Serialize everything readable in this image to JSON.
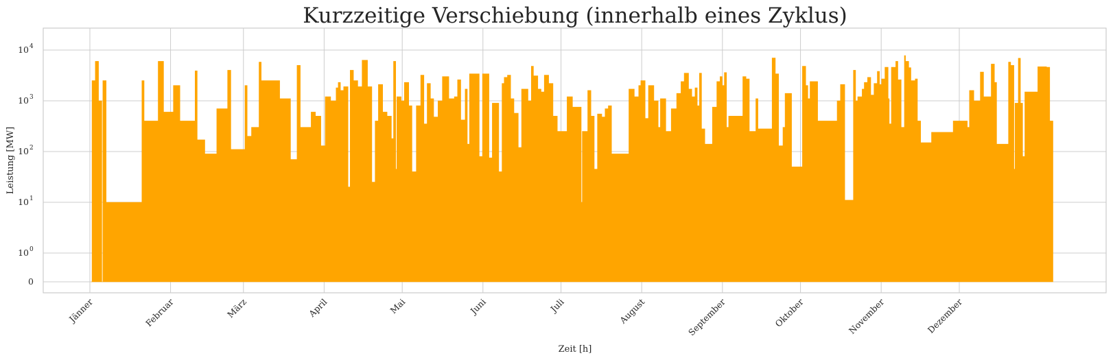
{
  "chart_data": {
    "type": "area",
    "title": "Kurzzeitige Verschiebung (innerhalb eines Zyklus)",
    "xlabel": "Zeit [h]",
    "ylabel": "Leistung [MW]",
    "yscale": "symlog",
    "ytick_labels": [
      {
        "value": 0,
        "label": "0",
        "exp": ""
      },
      {
        "value": 1,
        "label": "10",
        "exp": "0"
      },
      {
        "value": 10,
        "label": "10",
        "exp": "1"
      },
      {
        "value": 100,
        "label": "10",
        "exp": "2"
      },
      {
        "value": 1000,
        "label": "10",
        "exp": "3"
      },
      {
        "value": 10000,
        "label": "10",
        "exp": "4"
      }
    ],
    "xtick_labels": [
      {
        "hour": 0,
        "label": "Jänner"
      },
      {
        "hour": 744,
        "label": "Februar"
      },
      {
        "hour": 1416,
        "label": "März"
      },
      {
        "hour": 2160,
        "label": "April"
      },
      {
        "hour": 2880,
        "label": "Mai"
      },
      {
        "hour": 3624,
        "label": "Juni"
      },
      {
        "hour": 4344,
        "label": "Juli"
      },
      {
        "hour": 5088,
        "label": "August"
      },
      {
        "hour": 5832,
        "label": "September"
      },
      {
        "hour": 6552,
        "label": "Oktober"
      },
      {
        "hour": 7296,
        "label": "November"
      },
      {
        "hour": 8016,
        "label": "Dezember"
      }
    ],
    "xlim": [
      -430,
      9370
    ],
    "grid": true,
    "series": [
      {
        "color": "#FFA500",
        "points": [
          [
            10,
            0
          ],
          [
            20,
            2500
          ],
          [
            50,
            6000
          ],
          [
            80,
            1000
          ],
          [
            110,
            0
          ],
          [
            120,
            2500
          ],
          [
            150,
            10
          ],
          [
            480,
            2500
          ],
          [
            500,
            400
          ],
          [
            630,
            6000
          ],
          [
            680,
            600
          ],
          [
            770,
            2000
          ],
          [
            830,
            400
          ],
          [
            850,
            400
          ],
          [
            870,
            400
          ],
          [
            970,
            3900
          ],
          [
            990,
            170
          ],
          [
            1060,
            90
          ],
          [
            1170,
            700
          ],
          [
            1270,
            4000
          ],
          [
            1300,
            110
          ],
          [
            1430,
            2000
          ],
          [
            1450,
            200
          ],
          [
            1490,
            300
          ],
          [
            1560,
            5800
          ],
          [
            1580,
            2500
          ],
          [
            1600,
            2500
          ],
          [
            1750,
            1100
          ],
          [
            1850,
            70
          ],
          [
            1910,
            5000
          ],
          [
            1940,
            300
          ],
          [
            2040,
            600
          ],
          [
            2080,
            500
          ],
          [
            2130,
            130
          ],
          [
            2170,
            1200
          ],
          [
            2220,
            1000
          ],
          [
            2270,
            1800
          ],
          [
            2290,
            2300
          ],
          [
            2310,
            1600
          ],
          [
            2340,
            1900
          ],
          [
            2380,
            20
          ],
          [
            2400,
            4000
          ],
          [
            2430,
            2500
          ],
          [
            2470,
            1900
          ],
          [
            2510,
            6300
          ],
          [
            2560,
            1900
          ],
          [
            2600,
            25
          ],
          [
            2630,
            400
          ],
          [
            2660,
            2100
          ],
          [
            2700,
            600
          ],
          [
            2740,
            500
          ],
          [
            2780,
            180
          ],
          [
            2800,
            6000
          ],
          [
            2820,
            45
          ],
          [
            2830,
            1200
          ],
          [
            2870,
            1000
          ],
          [
            2900,
            2300
          ],
          [
            2940,
            800
          ],
          [
            2970,
            40
          ],
          [
            3010,
            800
          ],
          [
            3050,
            3200
          ],
          [
            3080,
            350
          ],
          [
            3110,
            2200
          ],
          [
            3140,
            1100
          ],
          [
            3170,
            480
          ],
          [
            3210,
            1000
          ],
          [
            3250,
            3000
          ],
          [
            3310,
            1100
          ],
          [
            3360,
            1200
          ],
          [
            3390,
            2600
          ],
          [
            3420,
            420
          ],
          [
            3460,
            1700
          ],
          [
            3480,
            140
          ],
          [
            3500,
            3400
          ],
          [
            3590,
            80
          ],
          [
            3620,
            3400
          ],
          [
            3680,
            75
          ],
          [
            3710,
            900
          ],
          [
            3770,
            40
          ],
          [
            3800,
            2200
          ],
          [
            3820,
            2900
          ],
          [
            3850,
            3200
          ],
          [
            3880,
            1100
          ],
          [
            3910,
            570
          ],
          [
            3950,
            120
          ],
          [
            3980,
            1700
          ],
          [
            4040,
            1000
          ],
          [
            4070,
            4800
          ],
          [
            4090,
            3100
          ],
          [
            4130,
            1700
          ],
          [
            4160,
            1500
          ],
          [
            4190,
            3200
          ],
          [
            4230,
            2200
          ],
          [
            4270,
            500
          ],
          [
            4310,
            250
          ],
          [
            4400,
            1200
          ],
          [
            4450,
            750
          ],
          [
            4530,
            10
          ],
          [
            4540,
            250
          ],
          [
            4590,
            1600
          ],
          [
            4620,
            500
          ],
          [
            4650,
            45
          ],
          [
            4680,
            550
          ],
          [
            4720,
            480
          ],
          [
            4750,
            700
          ],
          [
            4780,
            800
          ],
          [
            4810,
            90
          ],
          [
            4970,
            1700
          ],
          [
            5020,
            1200
          ],
          [
            5060,
            2000
          ],
          [
            5080,
            2500
          ],
          [
            5120,
            450
          ],
          [
            5150,
            2000
          ],
          [
            5200,
            1000
          ],
          [
            5240,
            300
          ],
          [
            5260,
            1100
          ],
          [
            5310,
            250
          ],
          [
            5360,
            700
          ],
          [
            5410,
            1400
          ],
          [
            5450,
            2400
          ],
          [
            5480,
            3500
          ],
          [
            5520,
            1700
          ],
          [
            5550,
            1200
          ],
          [
            5580,
            1800
          ],
          [
            5600,
            800
          ],
          [
            5620,
            3500
          ],
          [
            5640,
            280
          ],
          [
            5670,
            140
          ],
          [
            5710,
            140
          ],
          [
            5740,
            750
          ],
          [
            5780,
            2400
          ],
          [
            5810,
            3000
          ],
          [
            5830,
            2000
          ],
          [
            5850,
            3600
          ],
          [
            5870,
            300
          ],
          [
            5890,
            500
          ],
          [
            6020,
            3000
          ],
          [
            6050,
            2700
          ],
          [
            6080,
            250
          ],
          [
            6140,
            1100
          ],
          [
            6160,
            280
          ],
          [
            6290,
            7000
          ],
          [
            6320,
            3400
          ],
          [
            6350,
            130
          ],
          [
            6390,
            300
          ],
          [
            6410,
            1400
          ],
          [
            6470,
            50
          ],
          [
            6570,
            4800
          ],
          [
            6600,
            2000
          ],
          [
            6620,
            1100
          ],
          [
            6640,
            2400
          ],
          [
            6710,
            400
          ],
          [
            6880,
            400
          ],
          [
            6890,
            1000
          ],
          [
            6920,
            2100
          ],
          [
            6960,
            11
          ],
          [
            7040,
            4000
          ],
          [
            7060,
            1000
          ],
          [
            7080,
            1200
          ],
          [
            7120,
            1700
          ],
          [
            7140,
            2300
          ],
          [
            7170,
            2900
          ],
          [
            7200,
            1300
          ],
          [
            7230,
            2200
          ],
          [
            7260,
            3800
          ],
          [
            7280,
            2100
          ],
          [
            7300,
            2700
          ],
          [
            7330,
            4600
          ],
          [
            7360,
            1100
          ],
          [
            7370,
            350
          ],
          [
            7390,
            4600
          ],
          [
            7430,
            6000
          ],
          [
            7450,
            2600
          ],
          [
            7480,
            300
          ],
          [
            7510,
            7800
          ],
          [
            7520,
            6000
          ],
          [
            7550,
            4500
          ],
          [
            7570,
            2500
          ],
          [
            7610,
            2700
          ],
          [
            7630,
            400
          ],
          [
            7660,
            150
          ],
          [
            7760,
            240
          ],
          [
            7960,
            400
          ],
          [
            8090,
            300
          ],
          [
            8110,
            1600
          ],
          [
            8150,
            1000
          ],
          [
            8210,
            3700
          ],
          [
            8240,
            1200
          ],
          [
            8310,
            5300
          ],
          [
            8340,
            2300
          ],
          [
            8360,
            140
          ],
          [
            8470,
            5800
          ],
          [
            8490,
            5000
          ],
          [
            8520,
            45
          ],
          [
            8530,
            900
          ],
          [
            8560,
            6900
          ],
          [
            8580,
            900
          ],
          [
            8600,
            80
          ],
          [
            8620,
            1500
          ],
          [
            8740,
            4700
          ],
          [
            8820,
            4600
          ],
          [
            8850,
            400
          ],
          [
            8880,
            0
          ]
        ]
      }
    ]
  }
}
